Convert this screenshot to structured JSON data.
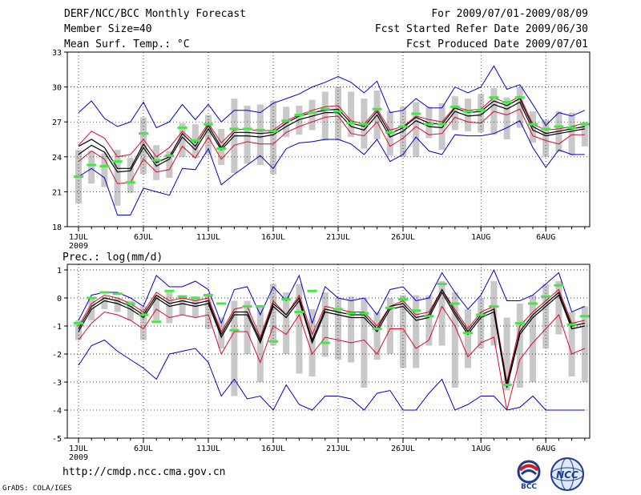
{
  "header": {
    "title": "DERF/NCC/BCC Monthly Forecast",
    "member_size": "Member Size=40",
    "variable": "Mean Surf. Temp.: °C",
    "period": "For 2009/07/01-2009/08/09",
    "refer_date": "Fcst Started Refer Date 2009/06/30",
    "produced_date": "Fcst Produced Date 2009/07/01"
  },
  "footer": {
    "url": "http://cmdp.ncc.cma.gov.cn",
    "credit": "GrADS: COLA/IGES",
    "logo_left_text": "BCC",
    "logo_right_text": "NCC"
  },
  "colors": {
    "box": "#c8c8c8",
    "obs": "#46e646",
    "mean": "#000000",
    "spread": "#dc0a28",
    "extreme": "#0000c8",
    "grid": "#000000"
  },
  "chart_data": [
    {
      "type": "line",
      "title": "Mean Surf. Temp.: °C",
      "xlabel": "",
      "ylabel": "",
      "x_labels": [
        {
          "day": 1,
          "text": "1JUL",
          "sub": "2009"
        },
        {
          "day": 6,
          "text": "6JUL"
        },
        {
          "day": 11,
          "text": "11JUL"
        },
        {
          "day": 16,
          "text": "16JUL"
        },
        {
          "day": 21,
          "text": "21JUL"
        },
        {
          "day": 26,
          "text": "26JUL"
        },
        {
          "day": 32,
          "text": "1AUG"
        },
        {
          "day": 37,
          "text": "6AUG"
        }
      ],
      "ylim": [
        18,
        33
      ],
      "yticks": [
        18,
        21,
        24,
        27,
        30,
        33
      ],
      "x": [
        1,
        2,
        3,
        4,
        5,
        6,
        7,
        8,
        9,
        10,
        11,
        12,
        13,
        14,
        15,
        16,
        17,
        18,
        19,
        20,
        21,
        22,
        23,
        24,
        25,
        26,
        27,
        28,
        29,
        30,
        31,
        32,
        33,
        34,
        35,
        36,
        37,
        38,
        39,
        40
      ],
      "series": [
        {
          "name": "max",
          "role": "extreme",
          "values": [
            27.8,
            28.8,
            27.3,
            26.6,
            27.0,
            28.7,
            26.5,
            27.0,
            28.5,
            27.2,
            28.5,
            27.0,
            28.0,
            28.0,
            27.8,
            28.6,
            29.0,
            29.4,
            30.0,
            30.4,
            30.9,
            30.4,
            29.5,
            30.5,
            27.8,
            28.0,
            29.0,
            28.2,
            28.2,
            30.0,
            29.5,
            30.0,
            31.8,
            29.8,
            30.2,
            28.5,
            26.7,
            27.8,
            27.5,
            28.0
          ]
        },
        {
          "name": "upper",
          "role": "spread",
          "values": [
            25.0,
            26.2,
            25.6,
            24.0,
            24.2,
            25.5,
            24.0,
            24.8,
            26.2,
            25.2,
            26.9,
            25.2,
            26.3,
            26.4,
            26.2,
            26.3,
            27.1,
            27.6,
            28.0,
            28.3,
            28.4,
            27.1,
            26.8,
            28.1,
            26.3,
            26.6,
            27.5,
            27.2,
            27.0,
            28.3,
            28.0,
            28.1,
            29.1,
            28.6,
            29.2,
            26.8,
            26.3,
            26.4,
            26.6,
            26.9
          ]
        },
        {
          "name": "mean_hi",
          "role": "mean",
          "values": [
            24.9,
            25.5,
            24.8,
            23.0,
            23.0,
            25.1,
            23.5,
            24.0,
            26.0,
            24.9,
            26.7,
            24.8,
            26.1,
            26.1,
            26.0,
            26.1,
            26.9,
            27.5,
            27.8,
            28.0,
            28.1,
            26.9,
            26.6,
            27.9,
            26.0,
            26.5,
            27.4,
            26.9,
            26.8,
            28.2,
            27.8,
            27.9,
            28.8,
            28.4,
            29.0,
            26.6,
            26.0,
            26.2,
            26.4,
            26.6
          ]
        },
        {
          "name": "mean_lo",
          "role": "mean",
          "values": [
            24.2,
            25.0,
            24.4,
            22.7,
            22.8,
            24.8,
            23.2,
            23.8,
            25.7,
            24.6,
            26.4,
            24.6,
            25.8,
            25.8,
            25.7,
            25.9,
            26.6,
            27.2,
            27.5,
            27.8,
            27.8,
            26.6,
            26.3,
            27.6,
            25.7,
            26.2,
            27.1,
            26.6,
            26.5,
            27.9,
            27.5,
            27.6,
            28.5,
            28.1,
            28.7,
            26.3,
            25.8,
            26.0,
            26.2,
            26.4
          ]
        },
        {
          "name": "lower",
          "role": "spread",
          "values": [
            23.6,
            24.5,
            23.8,
            21.7,
            21.8,
            23.8,
            22.7,
            22.9,
            24.9,
            23.9,
            25.7,
            23.8,
            25.0,
            25.3,
            25.1,
            25.1,
            26.1,
            26.6,
            27.0,
            27.4,
            27.5,
            26.0,
            25.8,
            27.0,
            24.9,
            25.6,
            26.6,
            25.9,
            26.0,
            27.4,
            27.0,
            26.9,
            27.9,
            27.6,
            28.1,
            25.8,
            25.4,
            25.1,
            25.9,
            25.9
          ]
        },
        {
          "name": "min",
          "role": "extreme",
          "values": [
            22.3,
            23.0,
            22.2,
            19.0,
            19.0,
            21.3,
            21.0,
            20.7,
            23.0,
            22.9,
            24.7,
            21.6,
            22.5,
            23.3,
            24.1,
            23.0,
            24.7,
            25.2,
            25.3,
            25.5,
            25.5,
            25.1,
            24.2,
            25.5,
            23.6,
            24.2,
            25.7,
            24.5,
            24.2,
            25.9,
            25.8,
            25.8,
            26.0,
            26.5,
            27.1,
            24.8,
            23.1,
            24.6,
            24.2,
            24.2
          ]
        },
        {
          "name": "obs",
          "role": "obs",
          "values": [
            22.3,
            23.3,
            23.2,
            23.6,
            21.8,
            26.0,
            23.7,
            24.1,
            26.5,
            25.4,
            26.8,
            24.7,
            26.4,
            26.4,
            26.3,
            26.2,
            27.1,
            27.6,
            27.8,
            28.1,
            27.9,
            26.9,
            26.8,
            28.1,
            26.1,
            26.6,
            27.7,
            26.8,
            26.8,
            28.3,
            27.9,
            28.0,
            29.1,
            28.7,
            29.1,
            26.8,
            26.4,
            26.6,
            26.5,
            26.8
          ]
        },
        {
          "name": "box_top",
          "role": "box",
          "values": [
            24.6,
            24.5,
            24.3,
            24.6,
            23.9,
            27.4,
            25.0,
            24.5,
            26.9,
            26.8,
            27.6,
            26.4,
            29.0,
            28.4,
            28.5,
            28.8,
            28.3,
            28.4,
            28.9,
            29.6,
            30.0,
            29.6,
            29.0,
            29.7,
            27.9,
            28.3,
            28.7,
            28.3,
            28.6,
            29.2,
            29.0,
            29.4,
            29.9,
            29.1,
            30.0,
            27.9,
            27.2,
            27.9,
            27.8,
            27.0
          ]
        },
        {
          "name": "box_bottom",
          "role": "box",
          "values": [
            20.0,
            21.7,
            21.4,
            19.8,
            20.9,
            22.5,
            22.0,
            22.2,
            24.0,
            23.9,
            24.2,
            23.3,
            22.6,
            23.4,
            23.3,
            22.5,
            25.7,
            25.9,
            26.3,
            25.4,
            25.4,
            25.7,
            24.7,
            25.5,
            24.1,
            24.0,
            24.0,
            25.6,
            24.6,
            26.3,
            26.2,
            26.1,
            25.9,
            25.5,
            26.5,
            25.2,
            24.0,
            24.4,
            24.1,
            24.9
          ]
        }
      ]
    },
    {
      "type": "line",
      "title": "Prec.: log(mm/d)",
      "xlabel": "",
      "ylabel": "",
      "x_labels": [
        {
          "day": 1,
          "text": "1JUL",
          "sub": "2009"
        },
        {
          "day": 6,
          "text": "6JUL"
        },
        {
          "day": 11,
          "text": "11JUL"
        },
        {
          "day": 16,
          "text": "16JUL"
        },
        {
          "day": 21,
          "text": "21JUL"
        },
        {
          "day": 26,
          "text": "26JUL"
        },
        {
          "day": 32,
          "text": "1AUG"
        },
        {
          "day": 37,
          "text": "6AUG"
        }
      ],
      "ylim": [
        -5,
        1.2
      ],
      "yticks": [
        -5,
        -4,
        -3,
        -2,
        -1,
        0,
        1
      ],
      "x": [
        1,
        2,
        3,
        4,
        5,
        6,
        7,
        8,
        9,
        10,
        11,
        12,
        13,
        14,
        15,
        16,
        17,
        18,
        19,
        20,
        21,
        22,
        23,
        24,
        25,
        26,
        27,
        28,
        29,
        30,
        31,
        32,
        33,
        34,
        35,
        36,
        37,
        38,
        39,
        40
      ],
      "series": [
        {
          "name": "max",
          "role": "extreme",
          "values": [
            -0.8,
            0.1,
            0.2,
            0.2,
            0.0,
            -0.3,
            0.8,
            0.4,
            0.4,
            0.6,
            0.3,
            -0.9,
            0.3,
            0.4,
            -0.6,
            0.4,
            -0.1,
            0.8,
            -0.9,
            0.4,
            0.0,
            -0.1,
            0.0,
            -0.6,
            0.3,
            0.4,
            -0.1,
            0.0,
            0.9,
            0.2,
            -0.4,
            0.1,
            1.0,
            -0.1,
            -0.1,
            0.1,
            0.5,
            0.9,
            -0.5,
            -0.3
          ]
        },
        {
          "name": "upper",
          "role": "spread",
          "values": [
            -1.0,
            -0.2,
            0.1,
            0.0,
            -0.2,
            -0.5,
            0.2,
            -0.1,
            0.0,
            -0.1,
            0.0,
            -1.2,
            -0.4,
            -0.3,
            -1.4,
            -0.1,
            -0.6,
            0.1,
            -1.3,
            -0.3,
            -0.4,
            -0.5,
            -0.5,
            -1.0,
            -0.3,
            -0.1,
            -0.6,
            -0.5,
            0.3,
            -0.4,
            -1.1,
            -0.5,
            -0.3,
            -3.0,
            -1.0,
            -0.5,
            -0.1,
            0.3,
            -0.9,
            -0.8
          ]
        },
        {
          "name": "mean_hi",
          "role": "mean",
          "values": [
            -1.1,
            -0.3,
            0.0,
            -0.1,
            -0.3,
            -0.6,
            0.1,
            -0.2,
            -0.1,
            -0.2,
            -0.1,
            -1.3,
            -0.5,
            -0.5,
            -1.5,
            -0.2,
            -0.6,
            0.0,
            -1.5,
            -0.4,
            -0.5,
            -0.6,
            -0.6,
            -1.1,
            -0.3,
            -0.2,
            -0.7,
            -0.6,
            0.3,
            -0.5,
            -1.2,
            -0.6,
            -0.4,
            -3.1,
            -1.2,
            -0.6,
            -0.2,
            0.2,
            -1.0,
            -0.9
          ]
        },
        {
          "name": "mean_lo",
          "role": "mean",
          "values": [
            -1.2,
            -0.4,
            -0.1,
            -0.2,
            -0.4,
            -0.7,
            0.0,
            -0.3,
            -0.2,
            -0.3,
            -0.2,
            -1.4,
            -0.6,
            -0.6,
            -1.6,
            -0.3,
            -0.7,
            -0.1,
            -1.6,
            -0.5,
            -0.6,
            -0.7,
            -0.7,
            -1.2,
            -0.4,
            -0.3,
            -0.8,
            -0.7,
            0.2,
            -0.6,
            -1.3,
            -0.7,
            -0.5,
            -3.2,
            -1.3,
            -0.7,
            -0.3,
            0.1,
            -1.1,
            -1.0
          ]
        },
        {
          "name": "lower",
          "role": "spread",
          "values": [
            -1.5,
            -0.9,
            -0.5,
            -0.6,
            -0.8,
            -1.1,
            -0.4,
            -0.7,
            -0.6,
            -0.7,
            -0.6,
            -2.0,
            -1.2,
            -1.2,
            -2.3,
            -1.0,
            -1.3,
            -0.6,
            -2.0,
            -1.4,
            -1.5,
            -1.6,
            -1.5,
            -2.0,
            -1.1,
            -1.1,
            -1.8,
            -1.5,
            -0.3,
            -1.0,
            -2.1,
            -1.6,
            -1.4,
            -4.0,
            -2.2,
            -1.6,
            -1.1,
            -0.6,
            -2.0,
            -1.8
          ]
        },
        {
          "name": "min",
          "role": "extreme",
          "values": [
            -2.4,
            -1.7,
            -1.5,
            -1.9,
            -2.2,
            -2.5,
            -2.9,
            -2.0,
            -1.9,
            -1.8,
            -2.3,
            -3.5,
            -2.9,
            -3.6,
            -3.5,
            -4.0,
            -3.1,
            -3.8,
            -4.0,
            -3.5,
            -3.5,
            -3.6,
            -4.0,
            -3.4,
            -3.3,
            -4.0,
            -4.0,
            -3.4,
            -2.9,
            -4.0,
            -3.8,
            -3.5,
            -3.5,
            -4.0,
            -3.9,
            -3.5,
            -4.0,
            -4.0,
            -4.0,
            -4.0
          ]
        },
        {
          "name": "obs",
          "role": "obs",
          "values": [
            -0.9,
            0.0,
            0.2,
            0.15,
            -0.2,
            -0.6,
            -0.85,
            0.25,
            0.05,
            0.0,
            0.1,
            -0.2,
            -1.15,
            -0.3,
            -0.3,
            -1.55,
            -0.05,
            -0.5,
            0.25,
            -1.6,
            -0.4,
            -0.55,
            -0.55,
            -1.1,
            -0.35,
            -0.05,
            -0.45,
            -0.65,
            0.5,
            -0.2,
            -1.25,
            -0.6,
            -0.3,
            -3.1,
            -0.9,
            -0.2,
            0.05,
            0.45,
            -0.95,
            -0.65
          ]
        },
        {
          "name": "box_top",
          "role": "box",
          "values": [
            -0.8,
            0.0,
            0.05,
            0.0,
            -0.1,
            -0.3,
            0.1,
            0.2,
            0.1,
            0.05,
            0.1,
            -0.7,
            -0.1,
            -0.1,
            -0.3,
            0.5,
            0.2,
            0.5,
            -0.4,
            0.2,
            0.0,
            0.05,
            0.0,
            -0.5,
            0.0,
            0.1,
            0.1,
            0.1,
            0.6,
            0.2,
            -0.4,
            0.0,
            0.6,
            -0.7,
            -0.2,
            0.1,
            0.5,
            0.6,
            -0.5,
            -0.3
          ]
        },
        {
          "name": "box_bottom",
          "role": "box",
          "values": [
            -1.5,
            -0.8,
            -0.4,
            -0.5,
            -0.8,
            -1.5,
            -0.8,
            -0.9,
            -0.6,
            -0.7,
            -1.1,
            -1.8,
            -3.5,
            -2.0,
            -3.0,
            -1.7,
            -2.0,
            -2.7,
            -2.8,
            -2.1,
            -2.2,
            -2.3,
            -3.2,
            -2.2,
            -2.0,
            -2.5,
            -2.5,
            -1.7,
            -1.7,
            -3.2,
            -2.5,
            -1.8,
            -1.7,
            -3.3,
            -3.2,
            -3.0,
            -1.8,
            -1.3,
            -2.8,
            -3.0
          ]
        }
      ]
    }
  ]
}
